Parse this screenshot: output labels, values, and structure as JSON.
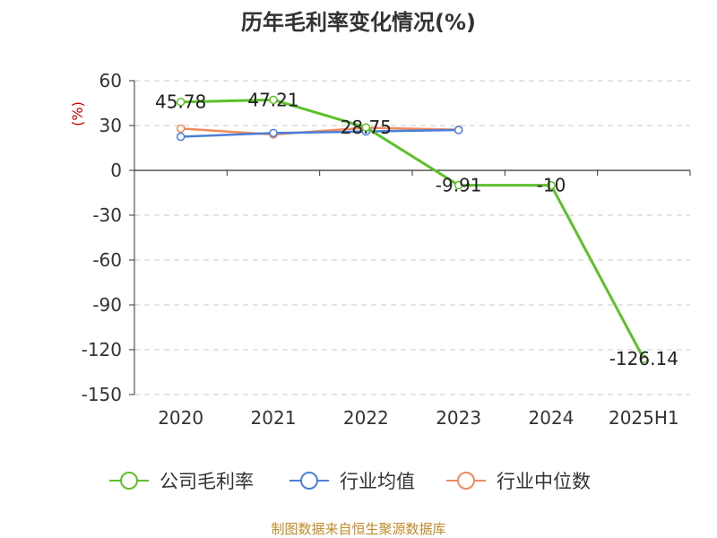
{
  "chart_data": {
    "type": "line",
    "title": "历年毛利率变化情况(%)",
    "y_unit_label": "(%)",
    "categories": [
      "2020",
      "2021",
      "2022",
      "2023",
      "2024",
      "2025H1"
    ],
    "y_ticks": [
      "60",
      "30",
      "0",
      "-30",
      "-60",
      "-90",
      "-120",
      "-150"
    ],
    "ylim": [
      -150,
      60
    ],
    "grid": true,
    "legend_position": "bottom",
    "series": [
      {
        "name": "公司毛利率",
        "color": "#5dc02a",
        "values": [
          45.78,
          47.21,
          28.75,
          -9.91,
          -10,
          -126.14
        ],
        "labels": [
          "45.78",
          "47.21",
          "28.75",
          "-9.91",
          "-10",
          "-126.14"
        ]
      },
      {
        "name": "行业均值",
        "color": "#4a7fd8",
        "values": [
          22.5,
          25.0,
          26.0,
          27.0,
          null,
          null
        ]
      },
      {
        "name": "行业中位数",
        "color": "#f08a5d",
        "values": [
          28.0,
          24.0,
          28.5,
          27.2,
          null,
          null
        ]
      }
    ]
  },
  "source_text": "制图数据来自恒生聚源数据库"
}
